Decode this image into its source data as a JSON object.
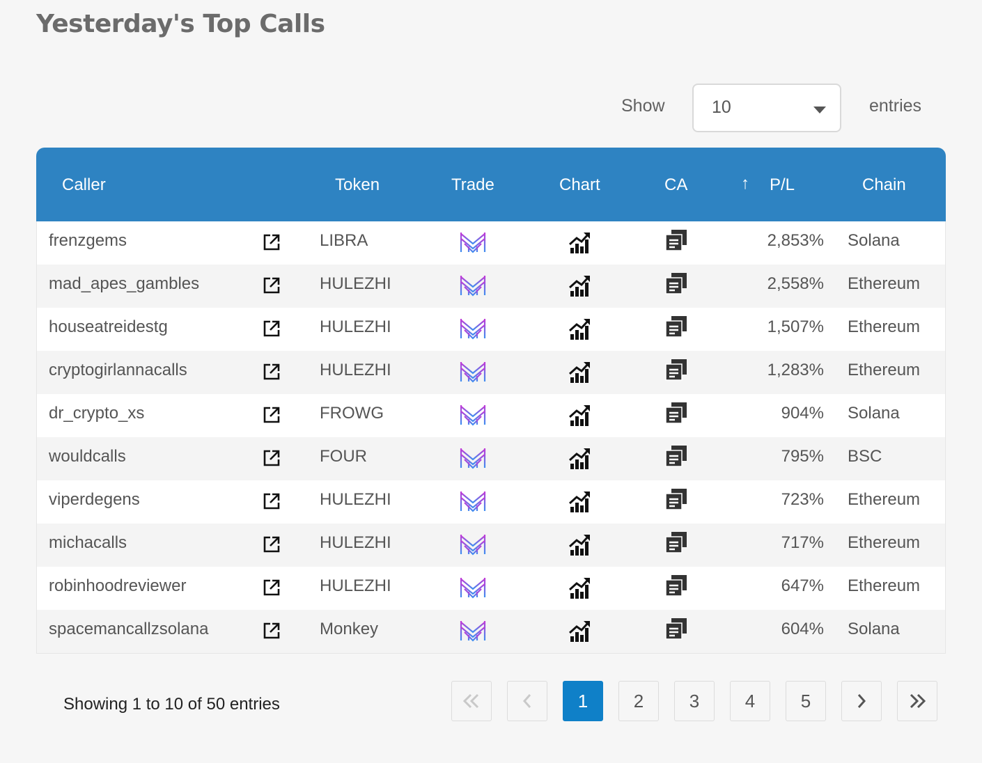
{
  "title": "Yesterday's Top Calls",
  "length_control": {
    "show_label": "Show",
    "selected": "10",
    "entries_label": "entries"
  },
  "table": {
    "headers": {
      "caller": "Caller",
      "token": "Token",
      "trade": "Trade",
      "chart": "Chart",
      "ca": "CA",
      "pl": "P/L",
      "chain": "Chain"
    },
    "sort": {
      "column": "P/L",
      "icon": "arrow-up-icon"
    },
    "rows": [
      {
        "caller": "frenzgems",
        "token": "LIBRA",
        "pl": "2,853%",
        "chain": "Solana"
      },
      {
        "caller": "mad_apes_gambles",
        "token": "HULEZHI",
        "pl": "2,558%",
        "chain": "Ethereum"
      },
      {
        "caller": "houseatreidestg",
        "token": "HULEZHI",
        "pl": "1,507%",
        "chain": "Ethereum"
      },
      {
        "caller": "cryptogirlannacalls",
        "token": "HULEZHI",
        "pl": "1,283%",
        "chain": "Ethereum"
      },
      {
        "caller": "dr_crypto_xs",
        "token": "FROWG",
        "pl": "904%",
        "chain": "Solana"
      },
      {
        "caller": "wouldcalls",
        "token": "FOUR",
        "pl": "795%",
        "chain": "BSC"
      },
      {
        "caller": "viperdegens",
        "token": "HULEZHI",
        "pl": "723%",
        "chain": "Ethereum"
      },
      {
        "caller": "michacalls",
        "token": "HULEZHI",
        "pl": "717%",
        "chain": "Ethereum"
      },
      {
        "caller": "robinhoodreviewer",
        "token": "HULEZHI",
        "pl": "647%",
        "chain": "Ethereum"
      },
      {
        "caller": "spacemancallzsolana",
        "token": "Monkey",
        "pl": "604%",
        "chain": "Solana"
      }
    ],
    "row_icons": {
      "caller_link": "external-link-icon",
      "trade": "trade-logo-icon",
      "chart": "chart-icon",
      "ca": "copy-icon"
    }
  },
  "info_text": "Showing 1 to 10 of 50 entries",
  "pagination": {
    "first_icon": "double-chevron-left-icon",
    "prev_icon": "chevron-left-icon",
    "pages": [
      "1",
      "2",
      "3",
      "4",
      "5"
    ],
    "current": "1",
    "next_icon": "chevron-right-icon",
    "last_icon": "double-chevron-right-icon"
  },
  "colors": {
    "header_bg": "#2e83c2",
    "active_page": "#0f80c8",
    "trade_logo_top": "#c03ad6",
    "trade_logo_bottom": "#3d8ff0"
  }
}
